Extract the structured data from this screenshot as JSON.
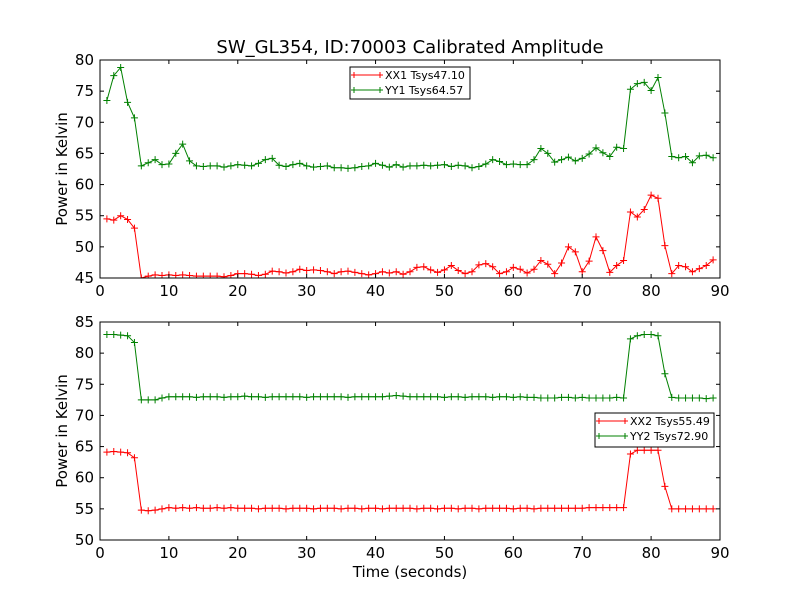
{
  "figure": {
    "title": "SW_GL354, ID:70003 Calibrated Amplitude"
  },
  "chart_data": [
    {
      "type": "line",
      "title": "SW_GL354, ID:70003 Calibrated Amplitude",
      "xlabel": "",
      "ylabel": "Power in Kelvin",
      "xlim": [
        0,
        90
      ],
      "ylim": [
        45,
        80
      ],
      "xticks": [
        0,
        10,
        20,
        30,
        40,
        50,
        60,
        70,
        80,
        90
      ],
      "yticks": [
        45,
        50,
        55,
        60,
        65,
        70,
        75,
        80
      ],
      "grid": false,
      "legend": "top-center",
      "series": [
        {
          "name": "XX1 Tsys47.10",
          "color": "#ff0000",
          "x": [
            1,
            2,
            3,
            4,
            5,
            6,
            7,
            8,
            9,
            10,
            11,
            12,
            13,
            14,
            15,
            16,
            17,
            18,
            19,
            20,
            21,
            22,
            23,
            24,
            25,
            26,
            27,
            28,
            29,
            30,
            31,
            32,
            33,
            34,
            35,
            36,
            37,
            38,
            39,
            40,
            41,
            42,
            43,
            44,
            45,
            46,
            47,
            48,
            49,
            50,
            51,
            52,
            53,
            54,
            55,
            56,
            57,
            58,
            59,
            60,
            61,
            62,
            63,
            64,
            65,
            66,
            67,
            68,
            69,
            70,
            71,
            72,
            73,
            74,
            75,
            76,
            77,
            78,
            79,
            80,
            81,
            82,
            83,
            84,
            85,
            86,
            87,
            88,
            89
          ],
          "y": [
            54.5,
            54.3,
            55.0,
            54.4,
            53.0,
            45.0,
            45.3,
            45.5,
            45.4,
            45.5,
            45.4,
            45.5,
            45.4,
            45.3,
            45.3,
            45.3,
            45.3,
            45.2,
            45.4,
            45.7,
            45.7,
            45.6,
            45.4,
            45.6,
            46.1,
            46.0,
            45.8,
            46.0,
            46.4,
            46.2,
            46.3,
            46.2,
            46.0,
            45.7,
            46.0,
            46.1,
            45.9,
            45.7,
            45.5,
            45.7,
            46.0,
            45.8,
            46.0,
            45.6,
            46.0,
            46.7,
            46.8,
            46.3,
            45.9,
            46.3,
            47.0,
            46.2,
            45.7,
            46.0,
            47.1,
            47.3,
            46.8,
            45.7,
            46.0,
            46.7,
            46.4,
            45.8,
            46.4,
            47.8,
            47.2,
            45.7,
            47.4,
            50.0,
            49.2,
            46.0,
            47.7,
            51.6,
            49.4,
            45.9,
            47.0,
            47.8,
            55.6,
            54.8,
            56.0,
            58.3,
            57.8,
            50.2,
            45.7,
            47.0,
            46.8,
            46.0,
            46.5,
            47.0,
            47.9
          ]
        },
        {
          "name": "YY1 Tsys64.57",
          "color": "#008000",
          "x": [
            1,
            2,
            3,
            4,
            5,
            6,
            7,
            8,
            9,
            10,
            11,
            12,
            13,
            14,
            15,
            16,
            17,
            18,
            19,
            20,
            21,
            22,
            23,
            24,
            25,
            26,
            27,
            28,
            29,
            30,
            31,
            32,
            33,
            34,
            35,
            36,
            37,
            38,
            39,
            40,
            41,
            42,
            43,
            44,
            45,
            46,
            47,
            48,
            49,
            50,
            51,
            52,
            53,
            54,
            55,
            56,
            57,
            58,
            59,
            60,
            61,
            62,
            63,
            64,
            65,
            66,
            67,
            68,
            69,
            70,
            71,
            72,
            73,
            74,
            75,
            76,
            77,
            78,
            79,
            80,
            81,
            82,
            83,
            84,
            85,
            86,
            87,
            88,
            89
          ],
          "y": [
            73.5,
            77.5,
            78.8,
            73.2,
            70.7,
            63.0,
            63.5,
            64.0,
            63.2,
            63.3,
            65.0,
            66.5,
            63.8,
            63.0,
            62.9,
            63.0,
            63.0,
            62.8,
            63.0,
            63.2,
            63.1,
            63.0,
            63.4,
            64.0,
            64.2,
            63.1,
            62.9,
            63.2,
            63.4,
            63.0,
            62.8,
            62.9,
            63.0,
            62.7,
            62.7,
            62.6,
            62.7,
            62.9,
            63.0,
            63.4,
            63.1,
            62.8,
            63.2,
            62.8,
            63.0,
            63.0,
            63.1,
            63.0,
            63.1,
            63.2,
            62.9,
            63.1,
            63.0,
            62.7,
            62.9,
            63.3,
            64.0,
            63.7,
            63.2,
            63.3,
            63.2,
            63.2,
            64.0,
            65.8,
            65.0,
            63.6,
            64.0,
            64.4,
            63.8,
            64.2,
            64.9,
            65.9,
            65.1,
            64.5,
            66.0,
            65.8,
            75.3,
            76.2,
            76.4,
            75.1,
            77.2,
            71.5,
            64.5,
            64.3,
            64.5,
            63.5,
            64.6,
            64.7,
            64.3
          ]
        }
      ]
    },
    {
      "type": "line",
      "title": "",
      "xlabel": "Time (seconds)",
      "ylabel": "Power in Kelvin",
      "xlim": [
        0,
        90
      ],
      "ylim": [
        50,
        85
      ],
      "xticks": [
        0,
        10,
        20,
        30,
        40,
        50,
        60,
        70,
        80,
        90
      ],
      "yticks": [
        50,
        55,
        60,
        65,
        70,
        75,
        80,
        85
      ],
      "grid": false,
      "legend": "center-right",
      "series": [
        {
          "name": "XX2 Tsys55.49",
          "color": "#ff0000",
          "x": [
            1,
            2,
            3,
            4,
            5,
            6,
            7,
            8,
            9,
            10,
            11,
            12,
            13,
            14,
            15,
            16,
            17,
            18,
            19,
            20,
            21,
            22,
            23,
            24,
            25,
            26,
            27,
            28,
            29,
            30,
            31,
            32,
            33,
            34,
            35,
            36,
            37,
            38,
            39,
            40,
            41,
            42,
            43,
            44,
            45,
            46,
            47,
            48,
            49,
            50,
            51,
            52,
            53,
            54,
            55,
            56,
            57,
            58,
            59,
            60,
            61,
            62,
            63,
            64,
            65,
            66,
            67,
            68,
            69,
            70,
            71,
            72,
            73,
            74,
            75,
            76,
            77,
            78,
            79,
            80,
            81,
            82,
            83,
            84,
            85,
            86,
            87,
            88,
            89
          ],
          "y": [
            64.1,
            64.2,
            64.1,
            64.0,
            63.2,
            54.8,
            54.7,
            54.8,
            55.0,
            55.2,
            55.1,
            55.2,
            55.1,
            55.2,
            55.1,
            55.1,
            55.2,
            55.1,
            55.2,
            55.1,
            55.1,
            55.1,
            55.0,
            55.1,
            55.1,
            55.1,
            55.0,
            55.1,
            55.1,
            55.1,
            55.0,
            55.1,
            55.1,
            55.1,
            55.0,
            55.1,
            55.1,
            55.0,
            55.1,
            55.1,
            55.0,
            55.1,
            55.1,
            55.1,
            55.1,
            55.0,
            55.1,
            55.1,
            55.0,
            55.1,
            55.1,
            55.0,
            55.1,
            55.1,
            55.0,
            55.1,
            55.1,
            55.1,
            55.1,
            55.0,
            55.1,
            55.1,
            55.0,
            55.1,
            55.1,
            55.1,
            55.1,
            55.1,
            55.1,
            55.1,
            55.2,
            55.2,
            55.2,
            55.2,
            55.2,
            55.2,
            63.8,
            64.4,
            64.4,
            64.4,
            64.4,
            58.6,
            55.0,
            55.0,
            55.0,
            55.0,
            55.0,
            55.0,
            55.0
          ]
        },
        {
          "name": "YY2 Tsys72.90",
          "color": "#008000",
          "x": [
            1,
            2,
            3,
            4,
            5,
            6,
            7,
            8,
            9,
            10,
            11,
            12,
            13,
            14,
            15,
            16,
            17,
            18,
            19,
            20,
            21,
            22,
            23,
            24,
            25,
            26,
            27,
            28,
            29,
            30,
            31,
            32,
            33,
            34,
            35,
            36,
            37,
            38,
            39,
            40,
            41,
            42,
            43,
            44,
            45,
            46,
            47,
            48,
            49,
            50,
            51,
            52,
            53,
            54,
            55,
            56,
            57,
            58,
            59,
            60,
            61,
            62,
            63,
            64,
            65,
            66,
            67,
            68,
            69,
            70,
            71,
            72,
            73,
            74,
            75,
            76,
            77,
            78,
            79,
            80,
            81,
            82,
            83,
            84,
            85,
            86,
            87,
            88,
            89
          ],
          "y": [
            83.0,
            83.0,
            82.9,
            82.8,
            81.7,
            72.5,
            72.5,
            72.5,
            72.8,
            73.0,
            73.0,
            73.0,
            73.0,
            72.9,
            73.0,
            73.0,
            73.0,
            72.9,
            73.0,
            73.0,
            73.1,
            73.0,
            73.0,
            72.9,
            73.0,
            73.0,
            73.0,
            73.0,
            73.0,
            72.9,
            73.0,
            73.0,
            73.0,
            73.0,
            73.0,
            72.9,
            73.0,
            73.0,
            73.0,
            73.0,
            73.0,
            73.1,
            73.2,
            73.1,
            73.0,
            73.0,
            73.0,
            73.0,
            73.0,
            72.9,
            73.0,
            73.0,
            72.9,
            73.0,
            73.0,
            73.0,
            72.9,
            73.0,
            73.0,
            72.9,
            73.0,
            72.9,
            72.9,
            72.8,
            72.8,
            72.8,
            72.9,
            72.9,
            72.8,
            72.9,
            72.8,
            72.8,
            72.8,
            72.8,
            72.9,
            72.8,
            82.3,
            82.8,
            83.0,
            83.0,
            82.8,
            76.7,
            72.9,
            72.8,
            72.8,
            72.8,
            72.8,
            72.7,
            72.8
          ]
        }
      ]
    }
  ]
}
